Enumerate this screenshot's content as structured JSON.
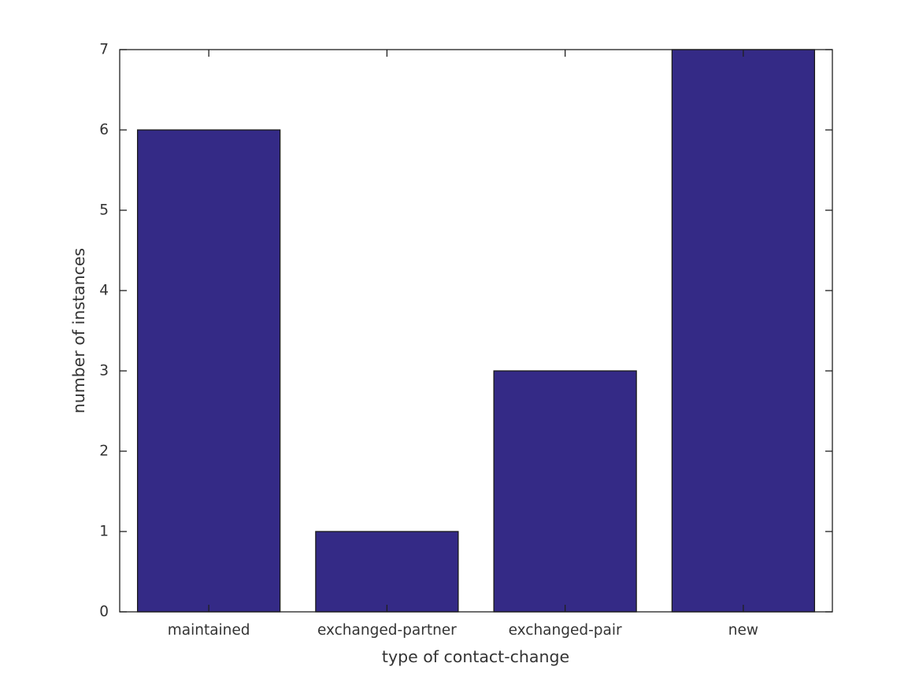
{
  "figure": {
    "background": "#ffffff"
  },
  "chart_data": {
    "type": "bar",
    "categories": [
      "maintained",
      "exchanged-partner",
      "exchanged-pair",
      "new"
    ],
    "values": [
      6,
      1,
      3,
      7
    ],
    "title": "",
    "xlabel": "type of contact-change",
    "ylabel": "number of instances",
    "ylim": [
      0,
      7
    ],
    "yticks": [
      0,
      1,
      2,
      3,
      4,
      5,
      6,
      7
    ],
    "bar_width_fraction": 0.8,
    "grid": "off",
    "legend": "none",
    "box": "on",
    "tick_direction": "in",
    "colors": {
      "bar_fill": "#342a86",
      "bar_edge": "#1a1a1a",
      "axis": "#1f1f1f",
      "text": "#343434"
    }
  }
}
